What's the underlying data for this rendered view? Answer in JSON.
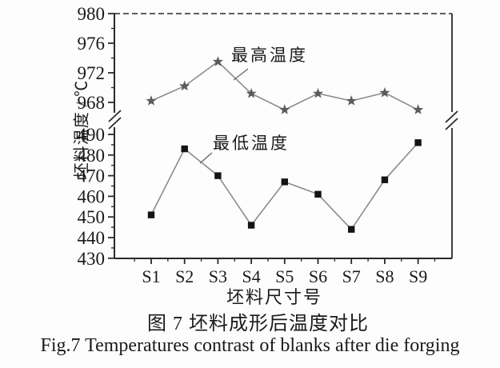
{
  "figure": {
    "captions": {
      "chinese": "图 7  坯料成形后温度对比",
      "english": "Fig.7  Temperatures contrast of blanks after die forging"
    }
  },
  "chart_data": {
    "type": "line",
    "title": "",
    "xlabel": "坯料尺寸号",
    "ylabel": "坯料温度 / ℃",
    "categories": [
      "S1",
      "S2",
      "S3",
      "S4",
      "S5",
      "S6",
      "S7",
      "S8",
      "S9"
    ],
    "series": [
      {
        "name": "最高温度",
        "marker": "star",
        "axis": "upper",
        "values": [
          968.2,
          970.2,
          973.5,
          969.2,
          967.0,
          969.2,
          968.2,
          969.3,
          967.0
        ]
      },
      {
        "name": "最低温度",
        "marker": "square",
        "axis": "lower",
        "values": [
          451,
          483,
          470,
          446,
          467,
          461,
          444,
          468,
          486
        ]
      }
    ],
    "y_axis": {
      "broken": true,
      "upper": {
        "ticks": [
          980,
          976,
          972,
          968
        ],
        "minor_step": 2,
        "range": [
          966.5,
          980
        ]
      },
      "lower": {
        "ticks": [
          490,
          480,
          470,
          460,
          450,
          440,
          430
        ],
        "minor_step": 5,
        "range": [
          430,
          492
        ]
      }
    },
    "grid": false,
    "legend_position": "inline-annotations"
  },
  "colors": {
    "axis": "#2a2a2a",
    "text": "#1a1a1a",
    "line": "#8b8b8b",
    "star_marker": "#5c5c5c",
    "square_marker": "#141414",
    "leader": "#6a6a6a",
    "background": "#fdfdfd"
  }
}
